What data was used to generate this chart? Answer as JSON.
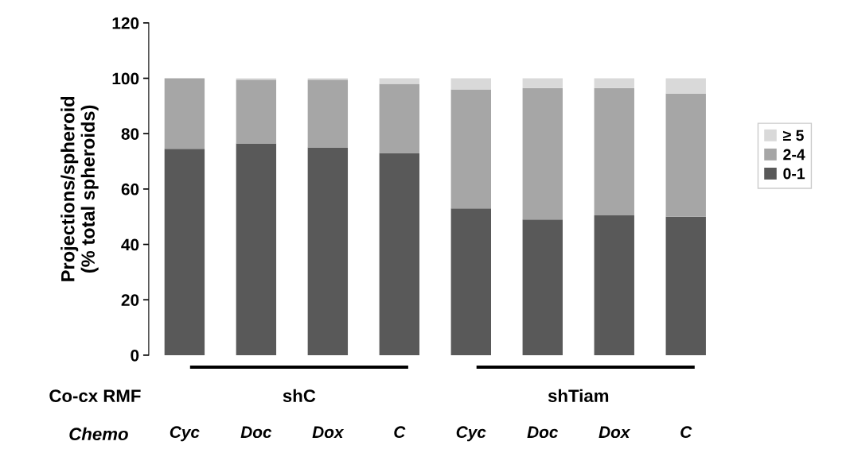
{
  "chart_data": {
    "type": "bar",
    "stacked": true,
    "ylabel": "Projections/spheroid\n(% total spheroids)",
    "categories": [
      "Cyc",
      "Doc",
      "Dox",
      "C",
      "Cyc",
      "Doc",
      "Dox",
      "C"
    ],
    "series": [
      {
        "name": "0-1",
        "color": "#595959",
        "values": [
          74.5,
          76.5,
          75,
          73,
          53,
          49,
          50.5,
          50
        ]
      },
      {
        "name": "2-4",
        "color": "#a6a6a6",
        "values": [
          25.5,
          23,
          24.5,
          25,
          43,
          47.5,
          46,
          44.5
        ]
      },
      {
        "name": "≥ 5",
        "color": "#d9d9d9",
        "values": [
          0,
          0.5,
          0.5,
          2,
          4,
          3.5,
          3.5,
          5.5
        ]
      }
    ],
    "ylim": [
      0,
      120
    ],
    "yticks": [
      0,
      20,
      40,
      60,
      80,
      100,
      120
    ],
    "grid": false,
    "legend": "right",
    "annotations": [
      "Co-cx RMF",
      "shC",
      "shTiam",
      "Chemo"
    ]
  }
}
